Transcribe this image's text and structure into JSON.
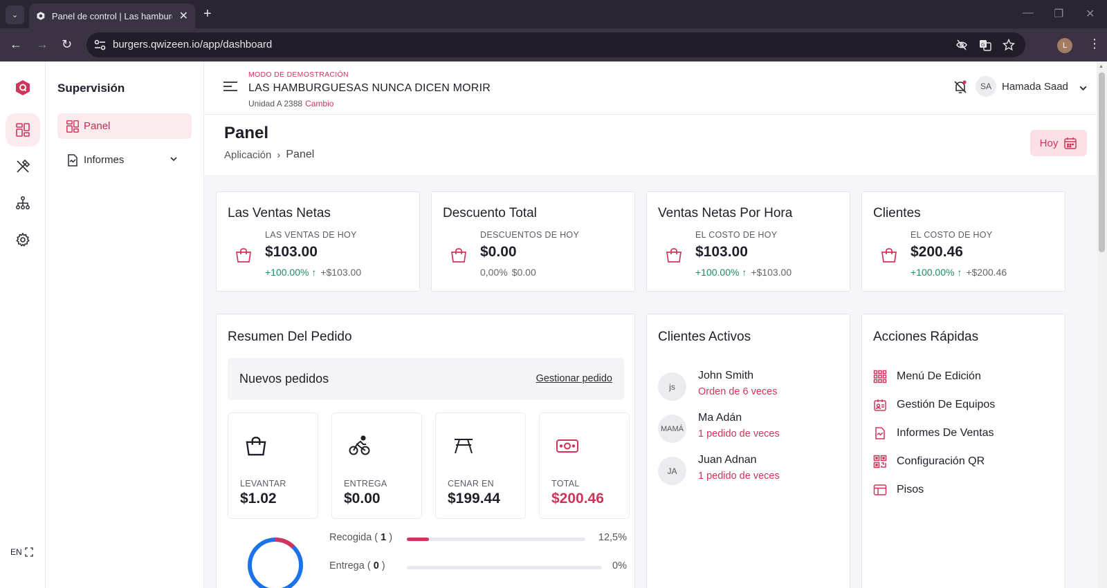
{
  "browser": {
    "tab_title": "Panel de control | Las hamburguesas nunca dicen morir",
    "url": "burgers.qwizeen.io/app/dashboard",
    "profile_initial": "L"
  },
  "app": {
    "accent_color": "#d0345a",
    "language": "EN",
    "rail_icons": [
      "dashboard-icon",
      "utensils-icon",
      "hierarchy-icon",
      "gear-icon"
    ]
  },
  "subnav": {
    "title": "Supervisión",
    "items": [
      {
        "label": "Panel",
        "icon": "dashboard-icon",
        "active": true
      },
      {
        "label": "Informes",
        "icon": "report-icon",
        "active": false
      }
    ]
  },
  "header": {
    "demo_label": "MODO DE DEMOSTRACIÓN",
    "store_name": "LAS HAMBURGUESAS NUNCA DICEN MORIR",
    "unit": "Unidad A 2388",
    "change_label": "Cambio",
    "user_initials": "SA",
    "user_name": "Hamada Saad"
  },
  "page": {
    "title": "Panel",
    "breadcrumb": [
      "Aplicación",
      "Panel"
    ],
    "today_button": "Hoy"
  },
  "stats": [
    {
      "title": "Las Ventas Netas",
      "label": "LAS VENTAS DE HOY",
      "value": "$103.00",
      "pct": "+100.00%",
      "trend": "up",
      "abs": "+$103.00"
    },
    {
      "title": "Descuento Total",
      "label": "DESCUENTOS DE HOY",
      "value": "$0.00",
      "pct": "0,00%",
      "trend": "none",
      "abs": "$0.00"
    },
    {
      "title": "Ventas Netas Por Hora",
      "label": "EL COSTO DE HOY",
      "value": "$103.00",
      "pct": "+100.00%",
      "trend": "up",
      "abs": "+$103.00"
    },
    {
      "title": "Clientes",
      "label": "EL COSTO DE HOY",
      "value": "$200.46",
      "pct": "+100.00%",
      "trend": "up",
      "abs": "+$200.46"
    }
  ],
  "orders": {
    "title": "Resumen Del Pedido",
    "new_orders": "Nuevos pedidos",
    "manage_link": "Gestionar pedido",
    "tiles": [
      {
        "icon": "shopping-bag-icon",
        "label": "LEVANTAR",
        "value": "$1.02"
      },
      {
        "icon": "bicycle-icon",
        "label": "ENTREGA",
        "value": "$0.00"
      },
      {
        "icon": "table-icon",
        "label": "CENAR EN",
        "value": "$199.44"
      },
      {
        "icon": "cash-icon",
        "label": "TOTAL",
        "value": "$200.46"
      }
    ],
    "progress": [
      {
        "label": "Recogida",
        "count": "1",
        "pct_text": "12,5%",
        "fraction": 0.125
      },
      {
        "label": "Entrega",
        "count": "0",
        "pct_text": "0%",
        "fraction": 0
      }
    ]
  },
  "active_clients": {
    "title": "Clientes Activos",
    "items": [
      {
        "initials": "js",
        "name": "John Smith",
        "orders": "Orden de 6 veces"
      },
      {
        "initials": "MAMÁ",
        "name": "Ma Adán",
        "orders": "1 pedido de veces"
      },
      {
        "initials": "JA",
        "name": "Juan Adnan",
        "orders": "1 pedido de veces"
      }
    ]
  },
  "quick_actions": {
    "title": "Acciones Rápidas",
    "items": [
      {
        "label": "Menú De Edición",
        "icon": "grid-icon"
      },
      {
        "label": "Gestión De Equipos",
        "icon": "team-icon"
      },
      {
        "label": "Informes De Ventas",
        "icon": "sales-report-icon"
      },
      {
        "label": "Configuración QR",
        "icon": "qr-icon"
      },
      {
        "label": "Pisos",
        "icon": "floor-icon"
      }
    ]
  }
}
